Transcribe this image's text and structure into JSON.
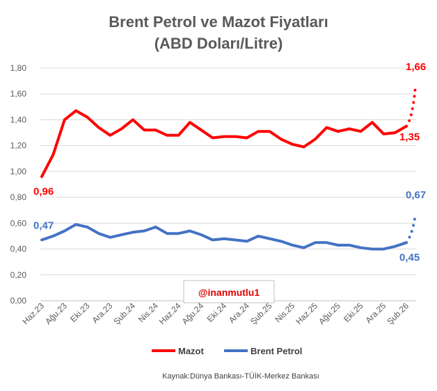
{
  "chart_data": {
    "type": "line",
    "title_line1": "Brent Petrol ve Mazot Fiyatları",
    "title_line2": "(ABD Doları/Litre)",
    "ylim": [
      0,
      1.8
    ],
    "yticks": [
      "0,00",
      "0,20",
      "0,40",
      "0,60",
      "0,80",
      "1,00",
      "1,20",
      "1,40",
      "1,60",
      "1,80"
    ],
    "x_tick_labels": [
      "Haz.23",
      "Ağu.23",
      "Eki.23",
      "Ara.23",
      "Şub.24",
      "Nis.24",
      "Haz.24",
      "Ağu.24",
      "Eki.24",
      "Ara.24",
      "Şub.25",
      "Nis.25",
      "Haz.25",
      "Ağu.25",
      "Eki.25",
      "Ara.25",
      "Şub.26"
    ],
    "series": [
      {
        "name": "Mazot",
        "color": "#ff0000",
        "values": [
          0.96,
          1.13,
          1.4,
          1.47,
          1.42,
          1.34,
          1.28,
          1.33,
          1.4,
          1.32,
          1.32,
          1.28,
          1.28,
          1.38,
          1.32,
          1.26,
          1.27,
          1.27,
          1.26,
          1.31,
          1.31,
          1.25,
          1.21,
          1.19,
          1.25,
          1.34,
          1.31,
          1.33,
          1.31,
          1.38,
          1.29,
          1.3,
          1.35
        ],
        "projection": 1.66,
        "start_label": "0,96",
        "end_label": "1,35",
        "projection_label": "1,66"
      },
      {
        "name": "Brent Petrol",
        "color": "#4472c4",
        "values": [
          0.47,
          0.5,
          0.54,
          0.59,
          0.57,
          0.52,
          0.49,
          0.51,
          0.53,
          0.54,
          0.57,
          0.52,
          0.52,
          0.54,
          0.51,
          0.47,
          0.48,
          0.47,
          0.46,
          0.5,
          0.48,
          0.46,
          0.43,
          0.41,
          0.45,
          0.45,
          0.43,
          0.43,
          0.41,
          0.4,
          0.4,
          0.42,
          0.45
        ],
        "projection": 0.67,
        "start_label": "0,47",
        "end_label": "0,45",
        "projection_label": "0,67"
      }
    ],
    "legend": [
      "Mazot",
      "Brent Petrol"
    ],
    "watermark": "@inanmutlu1",
    "source": "Kaynak:Dünya Bankası-TÜİK-Merkez Bankası"
  }
}
